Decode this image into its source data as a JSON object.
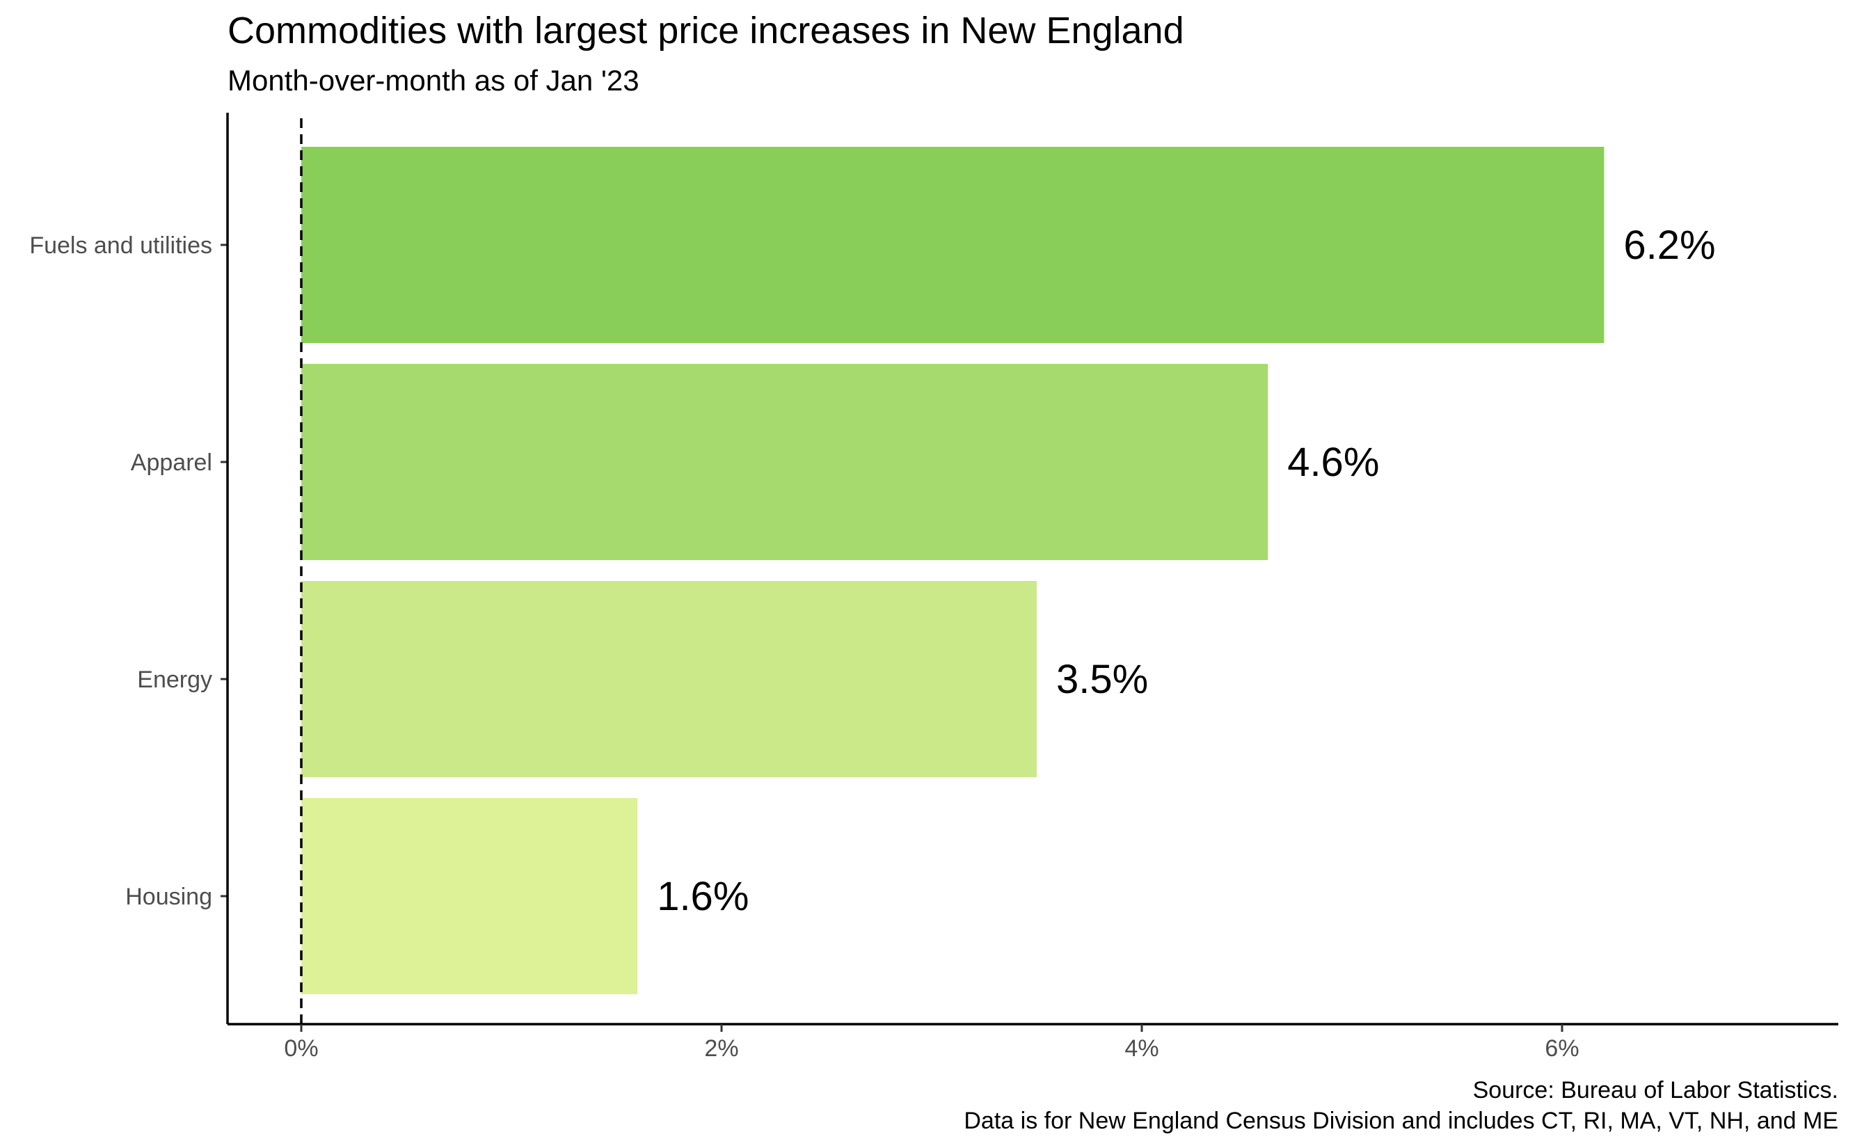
{
  "chart_data": {
    "type": "bar",
    "orientation": "horizontal",
    "title": "Commodities with largest price increases in New England",
    "subtitle": "Month-over-month as of Jan '23",
    "categories": [
      "Fuels and utilities",
      "Apparel",
      "Energy",
      "Housing"
    ],
    "values": [
      6.2,
      4.6,
      3.5,
      1.6
    ],
    "value_labels": [
      "6.2%",
      "4.6%",
      "3.5%",
      "1.6%"
    ],
    "bar_colors": [
      "#88ce59",
      "#a6da6e",
      "#cbe988",
      "#ddf196"
    ],
    "x_ticks": [
      0,
      2,
      4,
      6
    ],
    "x_tick_labels": [
      "0%",
      "2%",
      "4%",
      "6%"
    ],
    "xlim": [
      -0.36,
      7.55
    ],
    "xlabel": "",
    "ylabel": "",
    "reference_line": {
      "x": 0,
      "style": "dashed"
    },
    "grid": false,
    "legend": "none",
    "caption": [
      "Source: Bureau of Labor Statistics.",
      "Data is for New England Census Division and includes CT, RI, MA, VT, NH, and ME"
    ]
  }
}
